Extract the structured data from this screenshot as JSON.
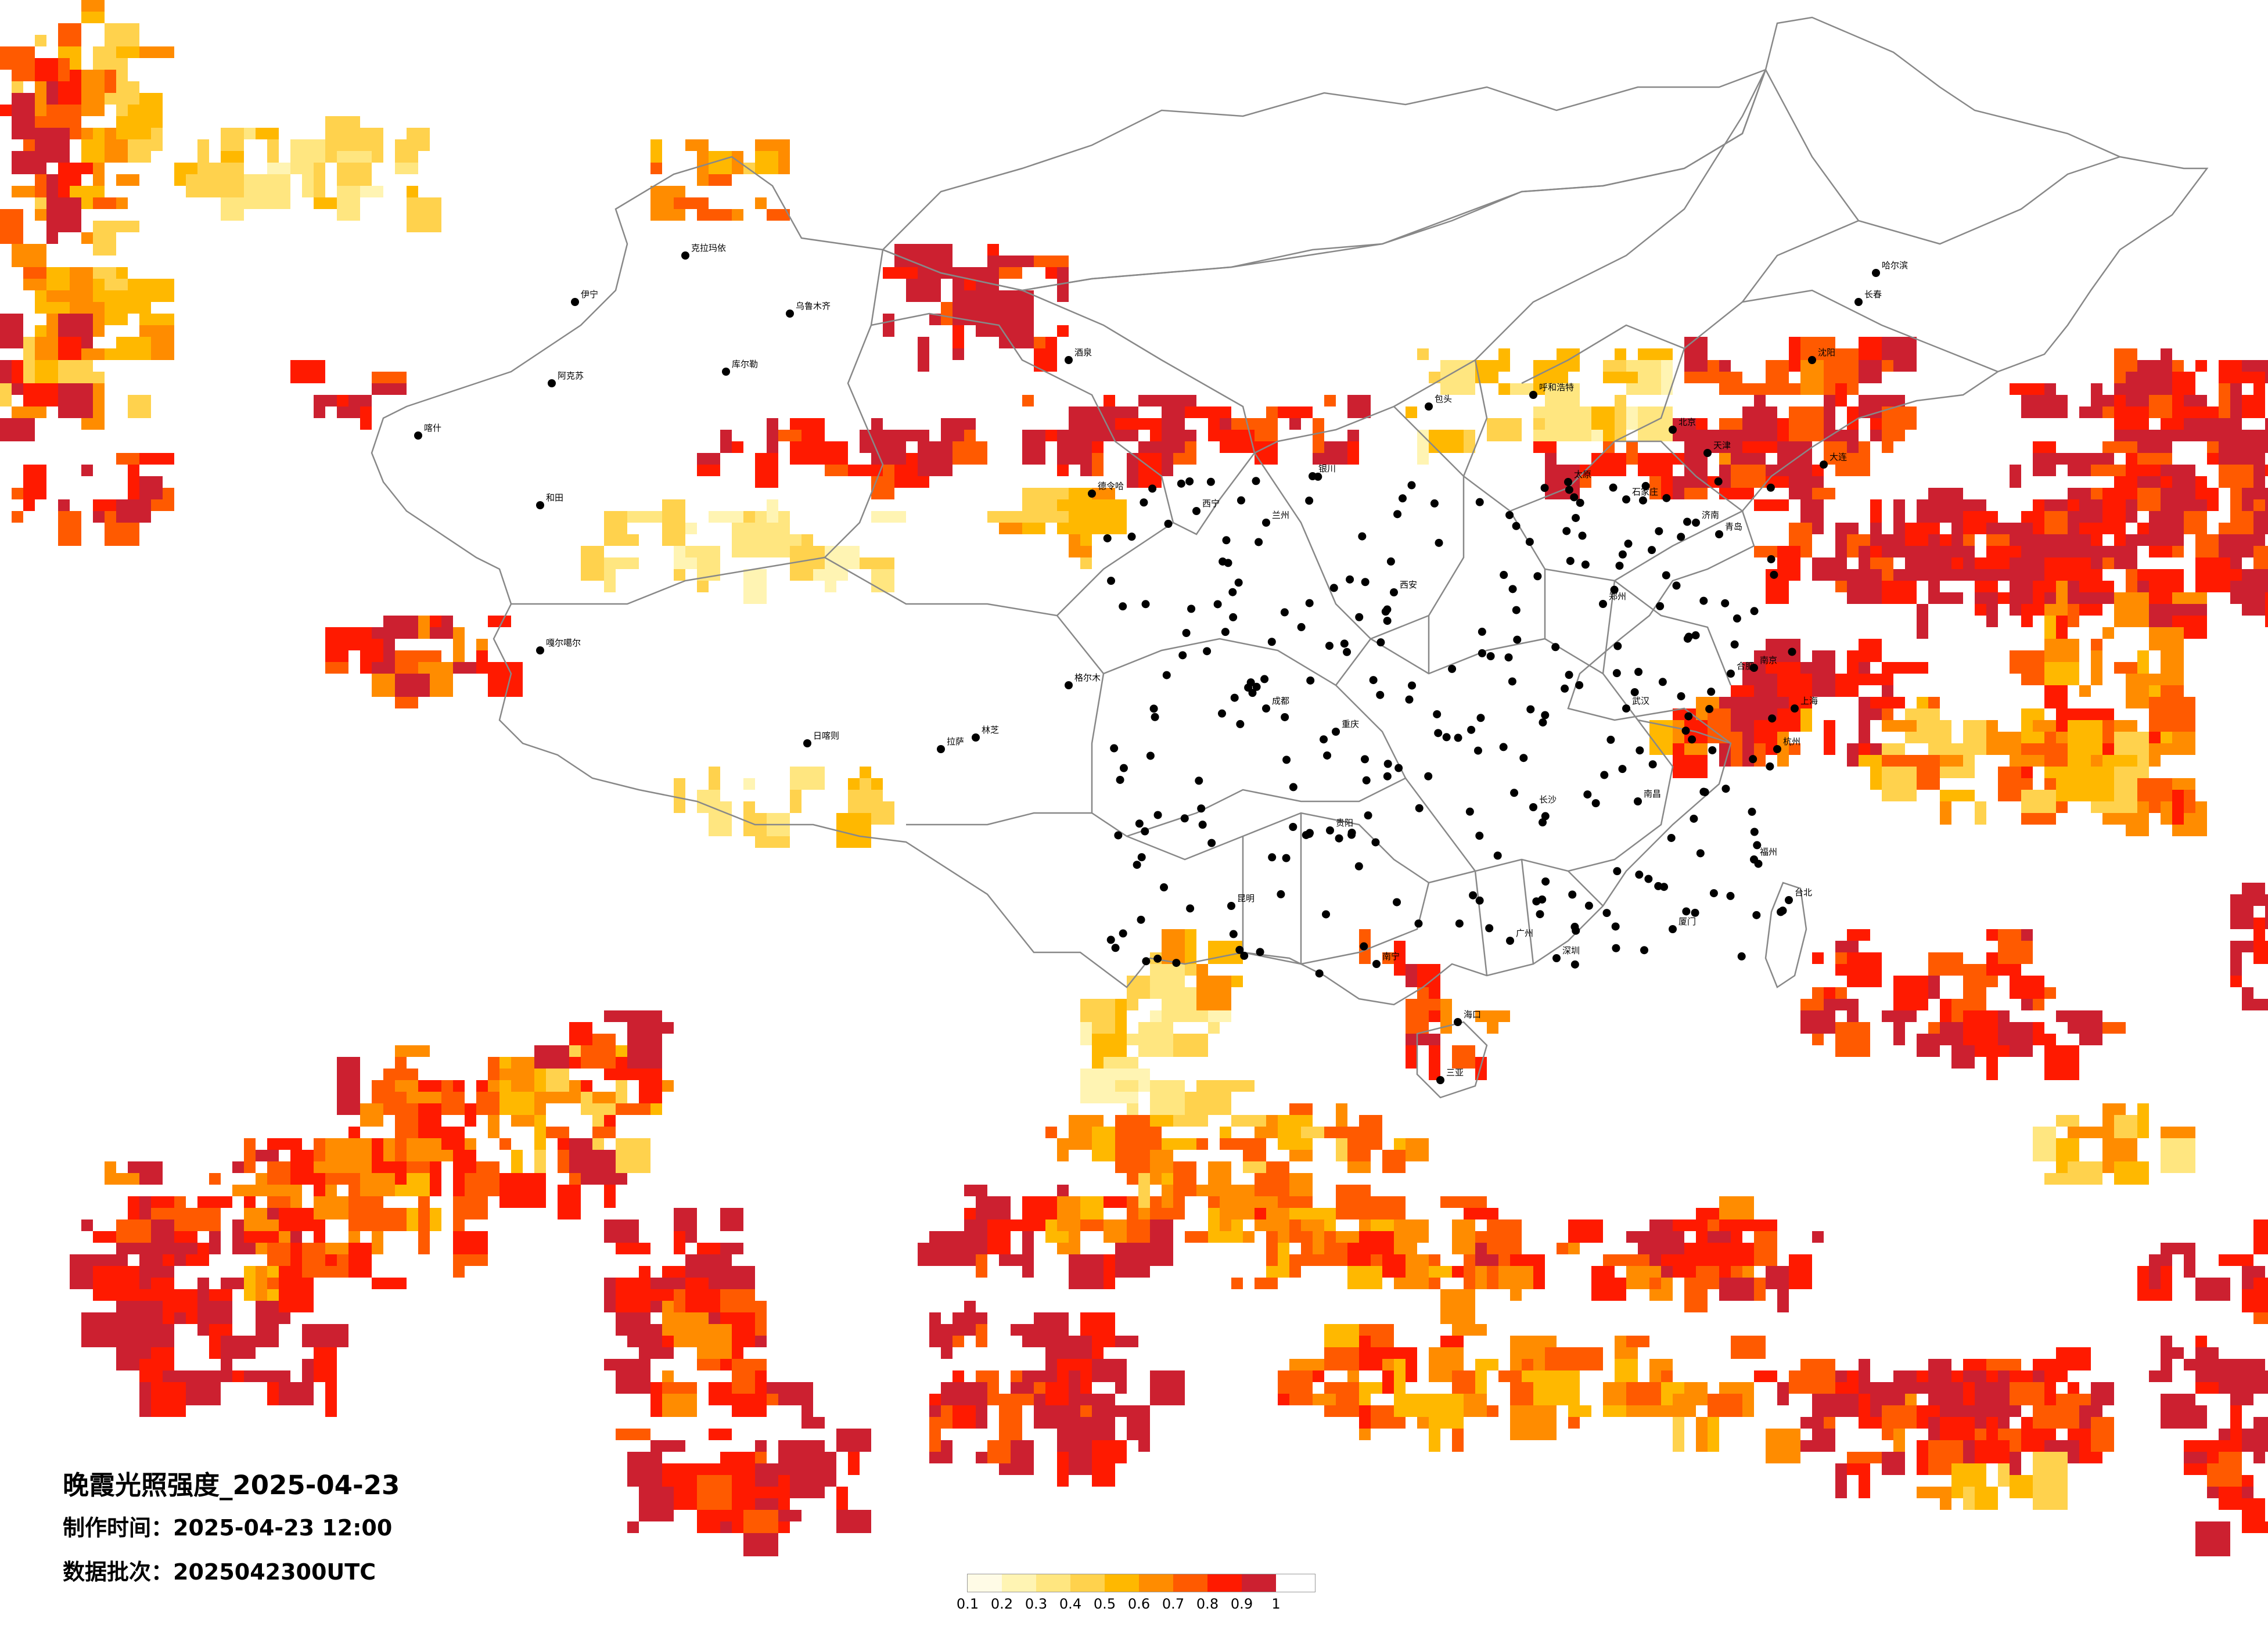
{
  "map": {
    "title": "晚霞光照强度_2025-04-23",
    "made_time_label": "制作时间：",
    "made_time": "2025-04-23 12:00",
    "batch_label": "数据批次：",
    "batch": "2025042300UTC",
    "legend": {
      "colors": [
        "#fffbe6",
        "#fff4b3",
        "#ffe680",
        "#ffd24d",
        "#ffb800",
        "#ff8c00",
        "#ff5a00",
        "#ff1a00",
        "#cc2030"
      ],
      "ticks": [
        "0.1",
        "0.2",
        "0.3",
        "0.4",
        "0.5",
        "0.6",
        "0.7",
        "0.8",
        "0.9",
        "1"
      ]
    },
    "cities": [
      "哈尔滨",
      "长春",
      "沈阳",
      "北京",
      "天津",
      "石家庄",
      "太原",
      "呼和浩特",
      "济南",
      "郑州",
      "西安",
      "兰州",
      "西宁",
      "银川",
      "乌鲁木齐",
      "拉萨",
      "成都",
      "重庆",
      "贵阳",
      "昆明",
      "南宁",
      "广州",
      "长沙",
      "武汉",
      "南昌",
      "合肥",
      "南京",
      "上海",
      "杭州",
      "福州",
      "台北",
      "海口",
      "克拉玛依",
      "伊宁",
      "喀什",
      "和田",
      "阿克苏",
      "库尔勒",
      "嘎尔噶尔",
      "日喀则",
      "林芝",
      "格尔木",
      "德令哈",
      "酒泉",
      "包头",
      "大连",
      "青岛",
      "厦门",
      "深圳",
      "三亚"
    ]
  }
}
